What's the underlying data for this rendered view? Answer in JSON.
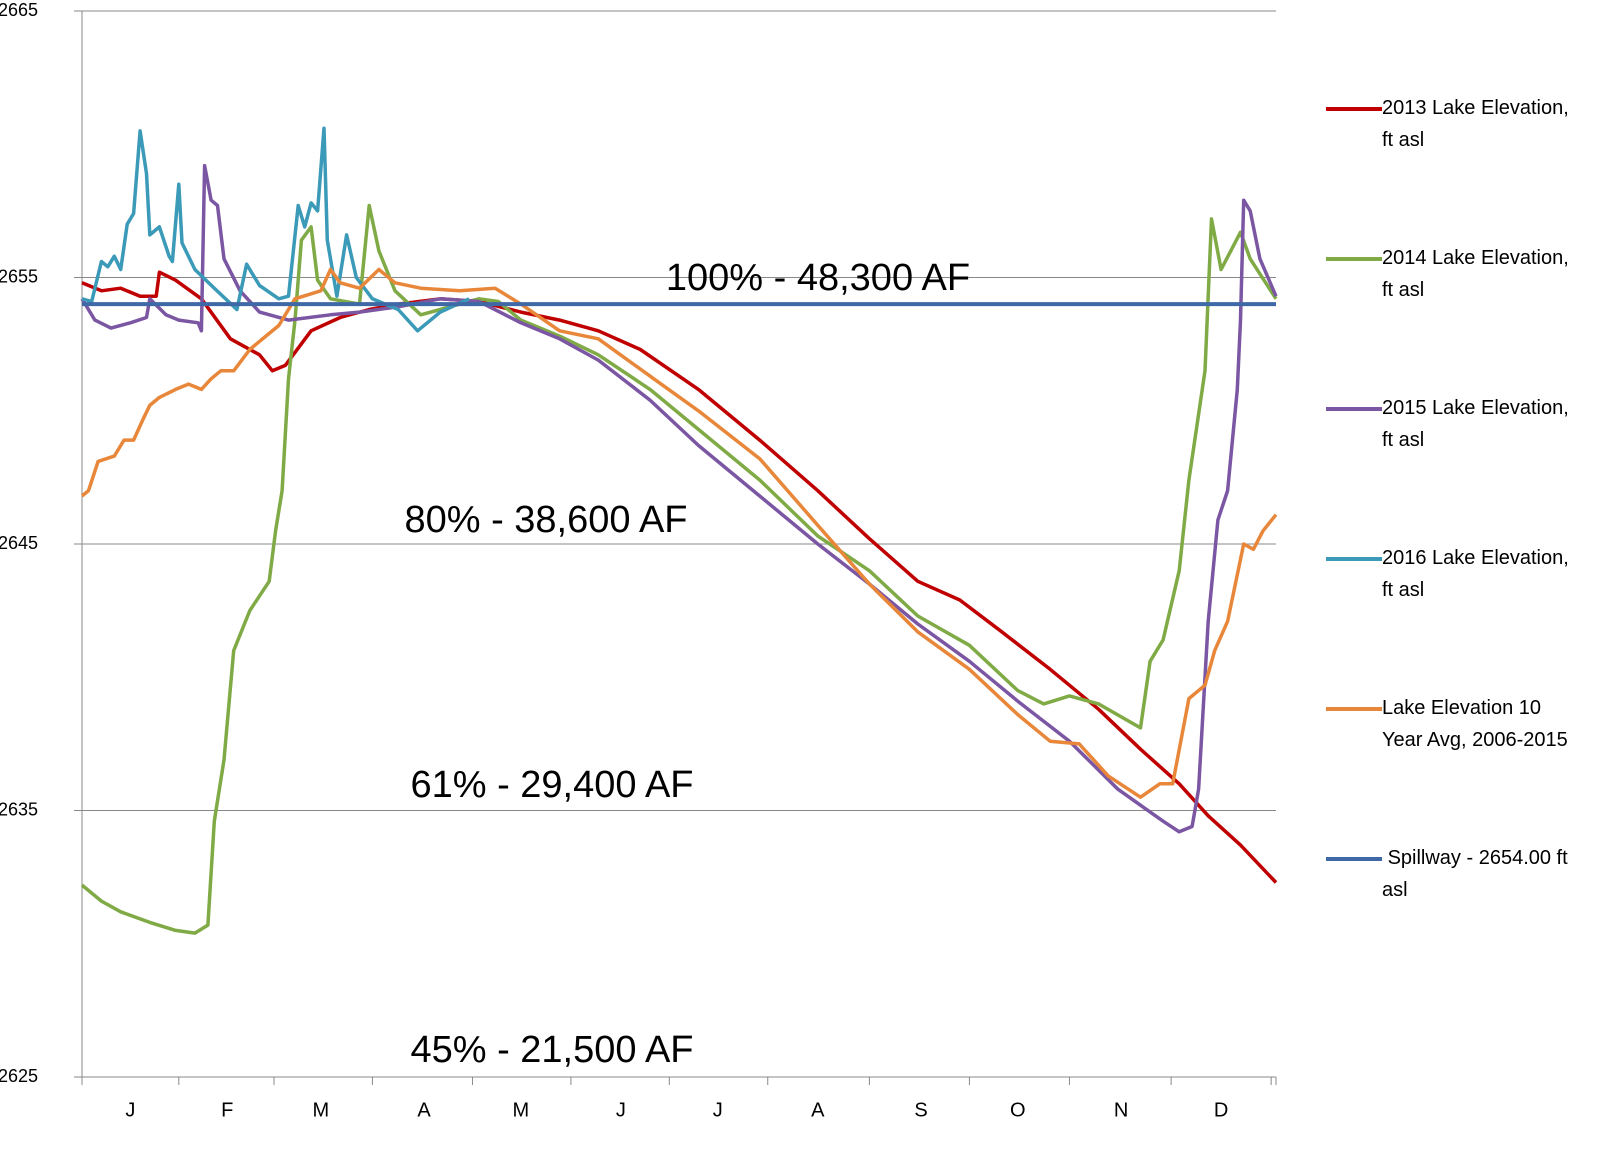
{
  "chart_data": {
    "type": "line",
    "xlim": [
      0,
      370
    ],
    "ylim": [
      2625,
      2665
    ],
    "xticks": [
      {
        "value": 15,
        "label": "J"
      },
      {
        "value": 45,
        "label": "F"
      },
      {
        "value": 74,
        "label": "M"
      },
      {
        "value": 106,
        "label": "A"
      },
      {
        "value": 136,
        "label": "M"
      },
      {
        "value": 167,
        "label": "J"
      },
      {
        "value": 197,
        "label": "J"
      },
      {
        "value": 228,
        "label": "A"
      },
      {
        "value": 260,
        "label": "S"
      },
      {
        "value": 290,
        "label": "O"
      },
      {
        "value": 322,
        "label": "N"
      },
      {
        "value": 353,
        "label": "D"
      }
    ],
    "yticks": [
      2625,
      2635,
      2645,
      2655,
      2665
    ],
    "grid": true,
    "annotations": [
      "100% - 48,300 AF",
      "80% - 38,600 AF",
      "61% - 29,400 AF",
      "45% - 21,500 AF"
    ],
    "series": [
      {
        "name": "2013 Lake Elevation, ft asl",
        "color": "#c00000",
        "x": [
          0,
          6,
          12,
          18,
          23,
          24,
          29,
          37,
          46,
          55,
          59,
          63,
          71,
          80,
          89,
          98,
          111,
          123,
          136,
          148,
          160,
          173,
          191,
          210,
          228,
          244,
          259,
          272,
          284,
          300,
          315,
          328,
          340,
          349,
          359,
          370
        ],
        "values": [
          2654.8,
          2654.5,
          2654.6,
          2654.3,
          2654.3,
          2655.2,
          2654.9,
          2654.2,
          2652.7,
          2652.1,
          2651.5,
          2651.7,
          2653.0,
          2653.5,
          2653.8,
          2654.0,
          2654.2,
          2654.1,
          2653.7,
          2653.4,
          2653.0,
          2652.3,
          2650.8,
          2648.9,
          2647.0,
          2645.2,
          2643.6,
          2642.9,
          2641.8,
          2640.3,
          2638.8,
          2637.3,
          2636.0,
          2634.8,
          2633.7,
          2632.3
        ]
      },
      {
        "name": "2014 Lake Elevation, ft asl",
        "color": "#7faa45",
        "x": [
          0,
          6,
          12,
          21,
          29,
          35,
          39,
          41,
          44,
          47,
          52,
          58,
          60,
          62,
          64,
          66,
          68,
          71,
          73,
          77,
          86,
          89,
          92,
          97,
          105,
          111,
          123,
          129,
          136,
          148,
          160,
          176,
          191,
          210,
          228,
          244,
          259,
          275,
          290,
          298,
          306,
          315,
          328,
          331,
          335,
          340,
          343,
          348,
          350,
          353,
          359,
          362,
          370
        ],
        "values": [
          2632.2,
          2631.6,
          2631.2,
          2630.8,
          2630.5,
          2630.4,
          2630.7,
          2634.6,
          2636.9,
          2641.0,
          2642.5,
          2643.6,
          2645.5,
          2647.0,
          2651.2,
          2653.4,
          2656.4,
          2656.9,
          2654.9,
          2654.2,
          2654.0,
          2657.7,
          2656.0,
          2654.5,
          2653.6,
          2653.8,
          2654.2,
          2654.1,
          2653.4,
          2652.8,
          2652.1,
          2650.8,
          2649.3,
          2647.4,
          2645.3,
          2644.0,
          2642.3,
          2641.2,
          2639.5,
          2639.0,
          2639.3,
          2639.0,
          2638.1,
          2640.6,
          2641.4,
          2644.0,
          2647.4,
          2651.5,
          2657.2,
          2655.3,
          2656.7,
          2655.7,
          2654.2
        ]
      },
      {
        "name": "2015 Lake Elevation, ft asl",
        "color": "#7b56a3",
        "x": [
          0,
          4,
          9,
          15,
          20,
          21,
          26,
          30,
          36,
          37,
          38,
          40,
          42,
          44,
          49,
          55,
          64,
          77,
          86,
          98,
          111,
          123,
          136,
          148,
          160,
          176,
          191,
          210,
          228,
          244,
          259,
          275,
          290,
          306,
          321,
          335,
          340,
          344,
          346,
          349,
          352,
          355,
          358,
          359,
          360,
          362,
          365,
          370
        ],
        "values": [
          2654.2,
          2653.4,
          2653.1,
          2653.3,
          2653.5,
          2654.2,
          2653.6,
          2653.4,
          2653.3,
          2653.0,
          2659.2,
          2657.9,
          2657.7,
          2655.7,
          2654.5,
          2653.7,
          2653.4,
          2653.6,
          2653.7,
          2653.9,
          2654.2,
          2654.1,
          2653.3,
          2652.7,
          2651.9,
          2650.4,
          2648.7,
          2646.8,
          2645.0,
          2643.5,
          2642.0,
          2640.6,
          2639.1,
          2637.6,
          2635.8,
          2634.6,
          2634.2,
          2634.4,
          2635.8,
          2642.1,
          2645.9,
          2647.0,
          2650.8,
          2653.4,
          2657.9,
          2657.5,
          2655.7,
          2654.3
        ]
      },
      {
        "name": "2016 Lake Elevation, ft asl",
        "color": "#3b9ab8",
        "x": [
          0,
          3,
          6,
          8,
          10,
          12,
          14,
          16,
          18,
          20,
          21,
          24,
          27,
          28,
          30,
          31,
          35,
          41,
          48,
          51,
          55,
          61,
          64,
          67,
          69,
          71,
          73,
          75,
          76,
          79,
          82,
          85,
          90,
          98,
          104,
          111,
          120
        ],
        "values": [
          2654.2,
          2654.1,
          2655.6,
          2655.4,
          2655.8,
          2655.3,
          2657.0,
          2657.4,
          2660.5,
          2658.9,
          2656.6,
          2656.9,
          2655.8,
          2655.6,
          2658.5,
          2656.3,
          2655.3,
          2654.6,
          2653.8,
          2655.5,
          2654.7,
          2654.2,
          2654.3,
          2657.7,
          2656.9,
          2657.8,
          2657.5,
          2660.6,
          2656.4,
          2654.3,
          2656.6,
          2655.0,
          2654.2,
          2653.8,
          2653.0,
          2653.7,
          2654.2
        ]
      },
      {
        "name": "Lake Elevation 10 Year Avg, 2006-2015",
        "color": "#e8873a",
        "x": [
          0,
          2,
          5,
          10,
          13,
          16,
          19,
          21,
          24,
          29,
          33,
          37,
          40,
          43,
          47,
          52,
          57,
          61,
          66,
          74,
          77,
          80,
          86,
          92,
          97,
          105,
          117,
          128,
          136,
          148,
          160,
          176,
          191,
          210,
          228,
          244,
          259,
          275,
          290,
          300,
          309,
          318,
          328,
          334,
          338,
          343,
          348,
          351,
          355,
          360,
          363,
          366,
          370
        ],
        "values": [
          2646.8,
          2647.0,
          2648.1,
          2648.3,
          2648.9,
          2648.9,
          2649.7,
          2650.2,
          2650.5,
          2650.8,
          2651.0,
          2650.8,
          2651.2,
          2651.5,
          2651.5,
          2652.3,
          2652.8,
          2653.2,
          2654.2,
          2654.5,
          2655.3,
          2654.8,
          2654.6,
          2655.3,
          2654.8,
          2654.6,
          2654.5,
          2654.6,
          2654.0,
          2653.0,
          2652.7,
          2651.3,
          2650.0,
          2648.2,
          2645.7,
          2643.5,
          2641.7,
          2640.3,
          2638.6,
          2637.6,
          2637.5,
          2636.3,
          2635.5,
          2636.0,
          2636.0,
          2639.2,
          2639.7,
          2641.0,
          2642.1,
          2645.0,
          2644.8,
          2645.5,
          2646.1
        ]
      },
      {
        "name": " Spillway - 2654.00 ft asl",
        "color": "#3f68a6",
        "x": [
          0,
          370
        ],
        "values": [
          2654,
          2654
        ]
      }
    ]
  }
}
